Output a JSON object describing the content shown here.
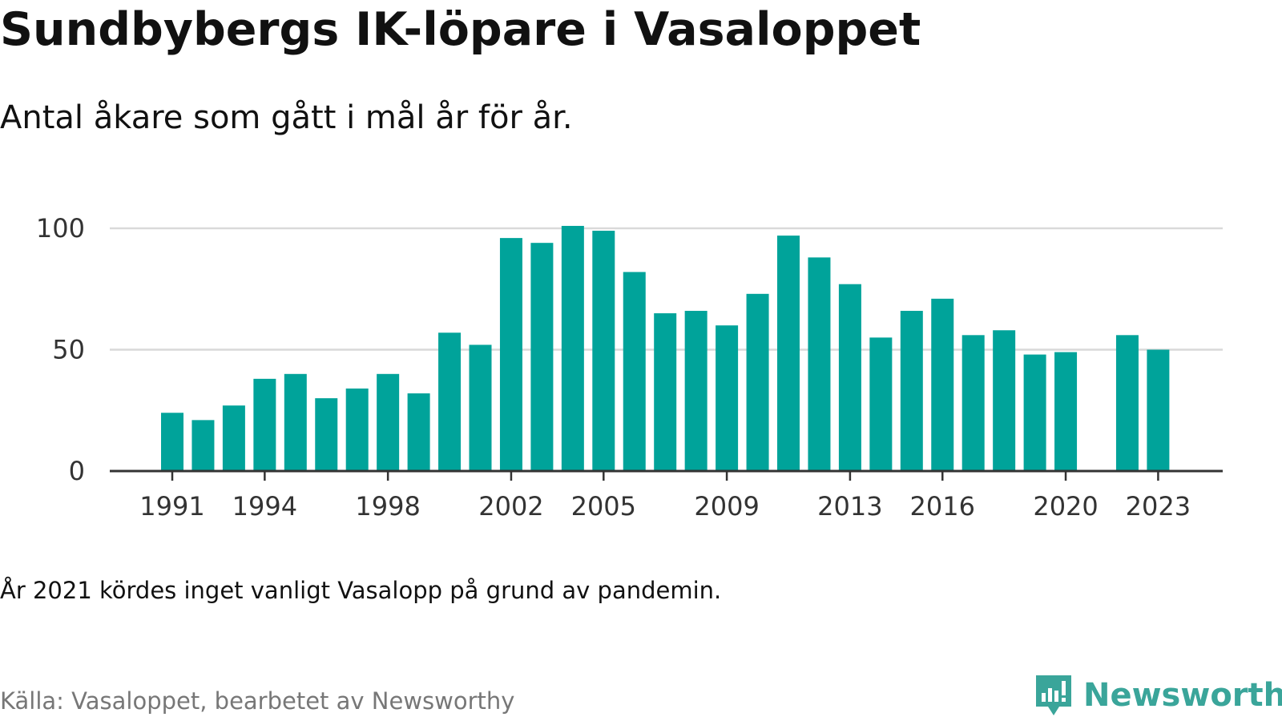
{
  "title": "Sundbybergs IK-löpare i Vasaloppet",
  "subtitle": "Antal åkare som gått i mål år för år.",
  "note": "År 2021 kördes inget vanligt Vasalopp på grund av pandemin.",
  "source": "Källa: Vasaloppet, bearbetet av Newsworthy",
  "logo": {
    "text": "Newsworthy",
    "icon": "newsworthy-logo-icon"
  },
  "colors": {
    "bar": "#00a39a",
    "grid": "#d9d9d9",
    "axis": "#333333",
    "logo": "#3aa59a"
  },
  "chart_data": {
    "type": "bar",
    "title": "Sundbybergs IK-löpare i Vasaloppet",
    "subtitle": "Antal åkare som gått i mål år för år.",
    "xlabel": "",
    "ylabel": "",
    "ylim": [
      0,
      100
    ],
    "yticks": [
      0,
      50,
      100
    ],
    "xticks": [
      "1991",
      "1994",
      "1998",
      "2002",
      "2005",
      "2009",
      "2013",
      "2016",
      "2020",
      "2023"
    ],
    "grid": true,
    "categories": [
      1991,
      1992,
      1993,
      1994,
      1995,
      1996,
      1997,
      1998,
      1999,
      2000,
      2001,
      2002,
      2003,
      2004,
      2005,
      2006,
      2007,
      2008,
      2009,
      2010,
      2011,
      2012,
      2013,
      2014,
      2015,
      2016,
      2017,
      2018,
      2019,
      2020,
      2021,
      2022,
      2023
    ],
    "values": [
      24,
      21,
      27,
      38,
      40,
      30,
      34,
      40,
      32,
      57,
      52,
      96,
      94,
      101,
      99,
      82,
      65,
      66,
      60,
      73,
      97,
      88,
      77,
      55,
      66,
      71,
      56,
      58,
      48,
      49,
      null,
      56,
      50
    ]
  }
}
